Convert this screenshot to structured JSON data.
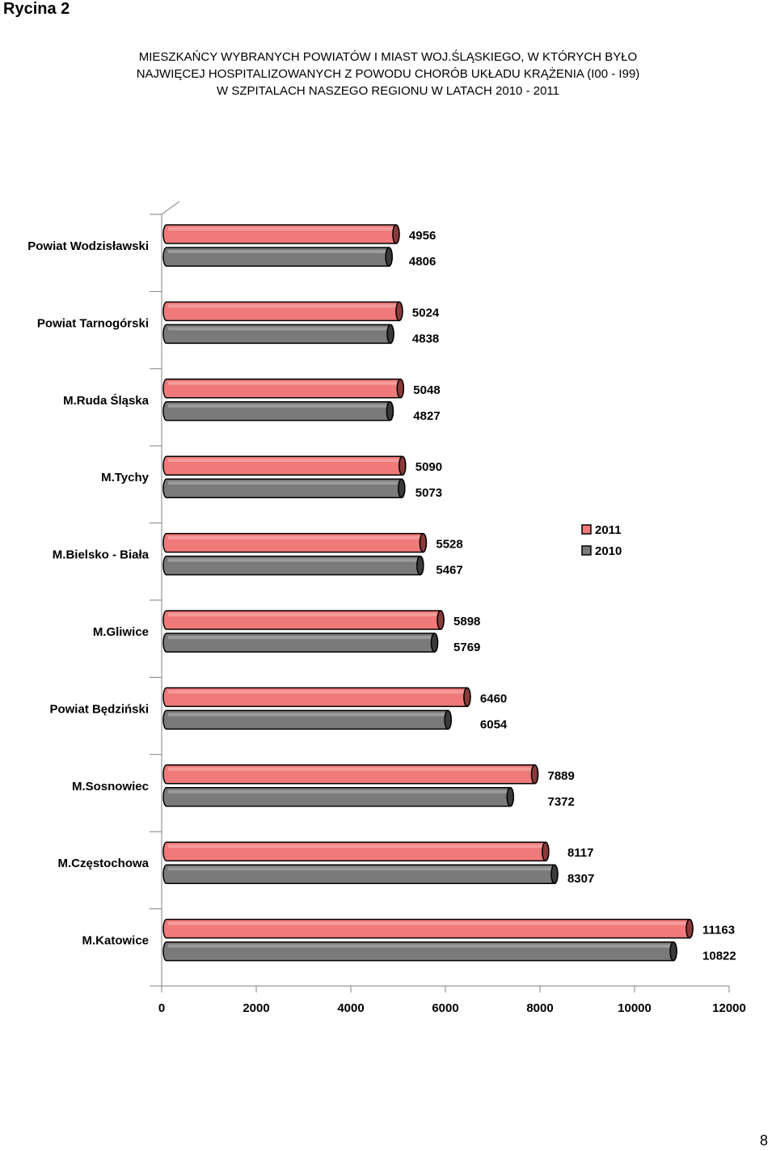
{
  "page": {
    "figure_label": "Rycina  2",
    "page_number": "8"
  },
  "chart_data": {
    "type": "bar",
    "orientation": "horizontal",
    "style": "3d-cylinder",
    "title_lines": [
      "MIESZKAŃCY WYBRANYCH POWIATÓW I MIAST  WOJ.ŚLĄSKIEGO, W KTÓRYCH BYŁO",
      "NAJWIĘCEJ HOSPITALIZOWANYCH  Z POWODU CHORÓB UKŁADU KRĄŻENIA (I00 - I99)",
      "W SZPITALACH NASZEGO REGIONU  W LATACH 2010 - 2011"
    ],
    "categories": [
      "Powiat Wodzisławski",
      "Powiat Tarnogórski",
      "M.Ruda Śląska",
      "M.Tychy",
      "M.Bielsko - Biała",
      "M.Gliwice",
      "Powiat Będziński",
      "M.Sosnowiec",
      "M.Częstochowa",
      "M.Katowice"
    ],
    "series": [
      {
        "name": "2011",
        "color": "#f07a7a",
        "cap_color": "#8b3a3a",
        "values": [
          4956,
          5024,
          5048,
          5090,
          5528,
          5898,
          6460,
          7889,
          8117,
          11163
        ]
      },
      {
        "name": "2010",
        "color": "#7a7a7a",
        "cap_color": "#3a3a3a",
        "values": [
          4806,
          4838,
          4827,
          5073,
          5467,
          5769,
          6054,
          7372,
          8307,
          10822
        ]
      }
    ],
    "data_labels": [
      [
        "4956",
        "4806"
      ],
      [
        "5024",
        "4838"
      ],
      [
        "5048",
        "4827"
      ],
      [
        "5090",
        "5073"
      ],
      [
        "5528",
        "5467"
      ],
      [
        "5898",
        "5769"
      ],
      [
        "6460",
        "6054"
      ],
      [
        "7889",
        "7372"
      ],
      [
        "8117",
        "8307"
      ],
      [
        "11163",
        "10822"
      ]
    ],
    "xlim": [
      0,
      12000
    ],
    "x_ticks": [
      "0",
      "2000",
      "4000",
      "6000",
      "8000",
      "10000",
      "12000"
    ],
    "grid": false,
    "legend": {
      "position": "right-middle",
      "entries": [
        "2011",
        "2010"
      ]
    }
  }
}
